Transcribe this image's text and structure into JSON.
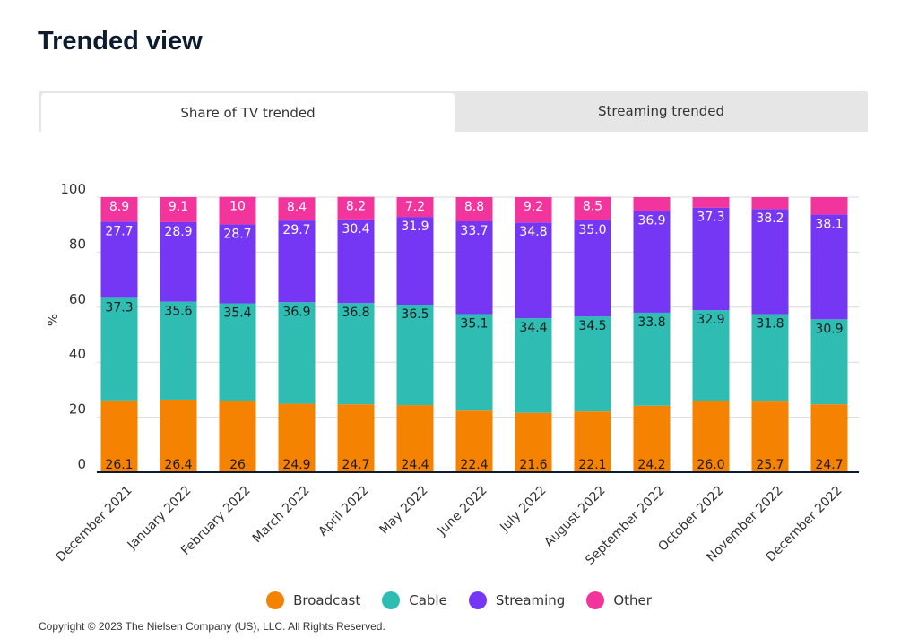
{
  "page": {
    "title": "Trended view",
    "copyright": "Copyright © 2023 The Nielsen Company (US), LLC. All Rights Reserved."
  },
  "tabs": [
    {
      "label": "Share of TV trended",
      "active": true
    },
    {
      "label": "Streaming trended",
      "active": false
    }
  ],
  "chart_data": {
    "type": "bar",
    "stacked": true,
    "categories": [
      "December 2021",
      "January 2022",
      "February 2022",
      "March 2022",
      "April 2022",
      "May 2022",
      "June 2022",
      "July 2022",
      "August 2022",
      "September 2022",
      "October 2022",
      "November 2022",
      "December 2022"
    ],
    "series": [
      {
        "name": "Broadcast",
        "color": "#f58200",
        "values": [
          26.1,
          26.4,
          26,
          24.9,
          24.7,
          24.4,
          22.4,
          21.6,
          22.1,
          24.2,
          26.0,
          25.7,
          24.7
        ],
        "labels": [
          "26.1",
          "26.4",
          "26",
          "24.9",
          "24.7",
          "24.4",
          "22.4",
          "21.6",
          "22.1",
          "24.2",
          "26.0",
          "25.7",
          "24.7"
        ]
      },
      {
        "name": "Cable",
        "color": "#2fbcb2",
        "values": [
          37.3,
          35.6,
          35.4,
          36.9,
          36.8,
          36.5,
          35.1,
          34.4,
          34.5,
          33.8,
          32.9,
          31.8,
          30.9
        ],
        "labels": [
          "37.3",
          "35.6",
          "35.4",
          "36.9",
          "36.8",
          "36.5",
          "35.1",
          "34.4",
          "34.5",
          "33.8",
          "32.9",
          "31.8",
          "30.9"
        ]
      },
      {
        "name": "Streaming",
        "color": "#7637f5",
        "values": [
          27.7,
          28.9,
          28.7,
          29.7,
          30.4,
          31.9,
          33.7,
          34.8,
          35.0,
          36.9,
          37.3,
          38.2,
          38.1
        ],
        "labels": [
          "27.7",
          "28.9",
          "28.7",
          "29.7",
          "30.4",
          "31.9",
          "33.7",
          "34.8",
          "35.0",
          "36.9",
          "37.3",
          "38.2",
          "38.1"
        ]
      },
      {
        "name": "Other",
        "color": "#f2359d",
        "values": [
          8.9,
          9.1,
          10,
          8.4,
          8.2,
          7.2,
          8.8,
          9.2,
          8.5,
          5.1,
          3.8,
          4.3,
          6.3
        ],
        "labels": [
          "8.9",
          "9.1",
          "10",
          "8.4",
          "8.2",
          "7.2",
          "8.8",
          "9.2",
          "8.5",
          "",
          "",
          "",
          ""
        ]
      }
    ],
    "ylabel": "%",
    "ylim": [
      0,
      100
    ],
    "yticks": [
      "0",
      "20",
      "40",
      "60",
      "80",
      "100"
    ],
    "grid": true,
    "legend_position": "bottom"
  }
}
